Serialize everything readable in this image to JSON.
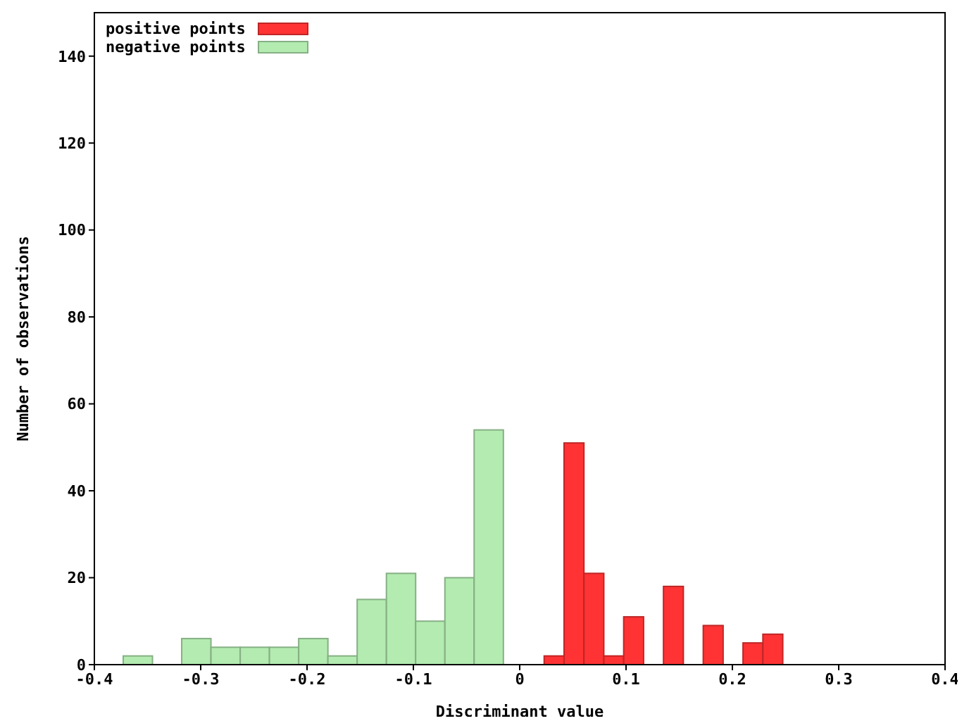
{
  "chart_data": {
    "type": "bar",
    "xlabel": "Discriminant value",
    "ylabel": "Number of observations",
    "xlim": [
      -0.4,
      0.4
    ],
    "xticks": [
      -0.4,
      -0.3,
      -0.2,
      -0.1,
      0,
      0.1,
      0.2,
      0.3,
      0.4
    ],
    "ylim": [
      0,
      150
    ],
    "yticks": [
      0,
      20,
      40,
      60,
      80,
      100,
      120,
      140
    ],
    "legend": "top left",
    "series": [
      {
        "name": "positive points",
        "color": "#ff3333",
        "x": [
          0.0364,
          0.0551,
          0.0738,
          0.0925,
          0.1112,
          0.1486,
          0.186,
          0.2234,
          0.2421
        ],
        "values": [
          2,
          51,
          21,
          2,
          11,
          18,
          9,
          5,
          7
        ]
      },
      {
        "name": "negative points",
        "color": "#b3ebb0",
        "x": [
          -0.363,
          -0.308,
          -0.2805,
          -0.253,
          -0.2255,
          -0.198,
          -0.1705,
          -0.143,
          -0.1155,
          -0.088,
          -0.0605,
          -0.033
        ],
        "values": [
          2,
          6,
          4,
          4,
          4,
          6,
          2,
          15,
          21,
          10,
          20,
          54
        ]
      }
    ]
  }
}
